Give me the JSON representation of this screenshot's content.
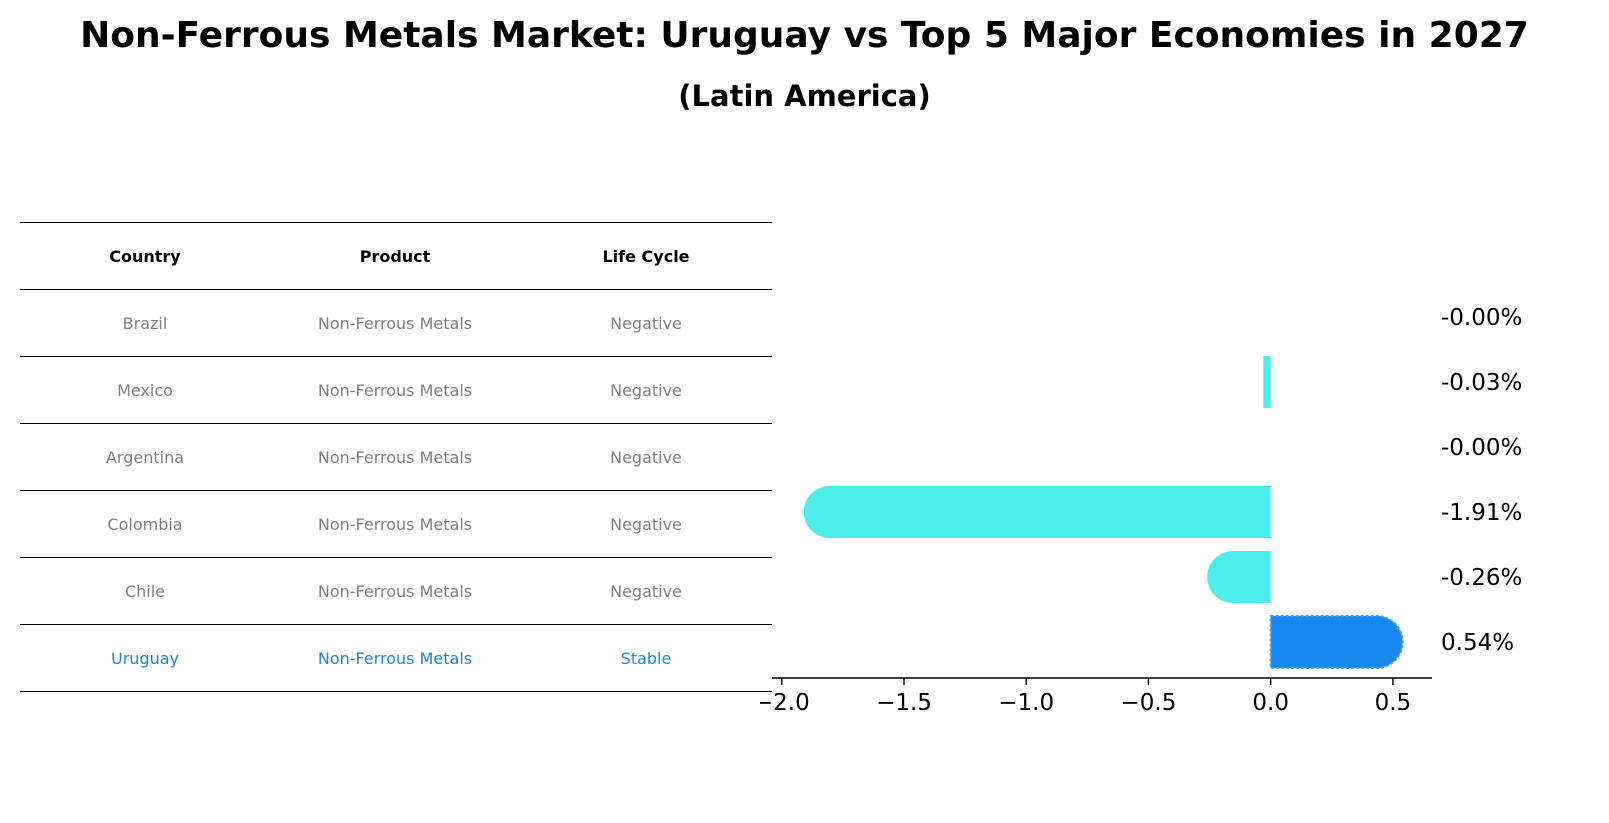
{
  "title": "Non-Ferrous Metals Market: Uruguay vs Top 5 Major Economies in 2027",
  "subtitle": "(Latin America)",
  "table": {
    "headers": [
      "Country",
      "Product",
      "Life Cycle"
    ],
    "rows": [
      {
        "country": "Brazil",
        "product": "Non-Ferrous Metals",
        "life_cycle": "Negative"
      },
      {
        "country": "Mexico",
        "product": "Non-Ferrous Metals",
        "life_cycle": "Negative"
      },
      {
        "country": "Argentina",
        "product": "Non-Ferrous Metals",
        "life_cycle": "Negative"
      },
      {
        "country": "Colombia",
        "product": "Non-Ferrous Metals",
        "life_cycle": "Negative"
      },
      {
        "country": "Chile",
        "product": "Non-Ferrous Metals",
        "life_cycle": "Negative"
      },
      {
        "country": "Uruguay",
        "product": "Non-Ferrous Metals",
        "life_cycle": "Stable"
      }
    ],
    "highlight_row": "Uruguay",
    "text_color": "#808080",
    "highlight_color": "#1f86d6"
  },
  "chart_data": {
    "type": "bar",
    "orientation": "horizontal",
    "categories": [
      "Brazil",
      "Mexico",
      "Argentina",
      "Colombia",
      "Chile",
      "Uruguay"
    ],
    "values": [
      -0.0,
      -0.03,
      -0.0,
      -1.91,
      -0.26,
      0.54
    ],
    "value_labels": [
      "-0.00%",
      "-0.03%",
      "-0.00%",
      "-1.91%",
      "-0.26%",
      "0.54%"
    ],
    "xlim": [
      -2.04,
      0.66
    ],
    "xticks": [
      -2.0,
      -1.5,
      -1.0,
      -0.5,
      0.0,
      0.5
    ],
    "xtick_labels": [
      "−2.0",
      "−1.5",
      "−1.0",
      "−0.5",
      "0.0",
      "0.5"
    ],
    "title": "",
    "xlabel": "",
    "ylabel": "",
    "grid": false,
    "colors": {
      "others": "#4aeeea",
      "highlight": "#1a86f0"
    }
  }
}
